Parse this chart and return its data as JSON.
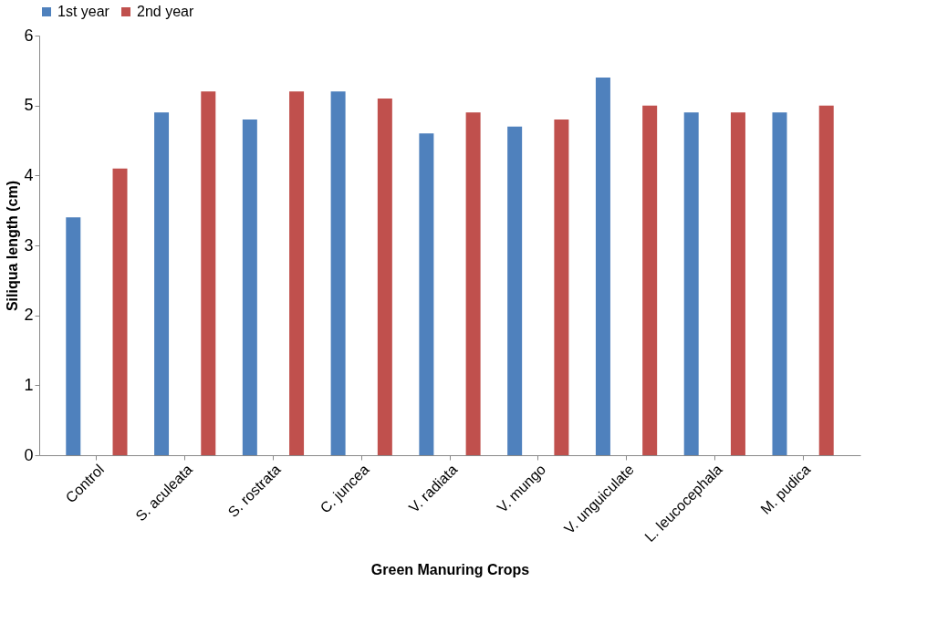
{
  "chart_data": {
    "type": "bar",
    "xlabel": "Green Manuring Crops",
    "ylabel": "Siliqua length (cm)",
    "categories": [
      "Control",
      "S. aculeata",
      "S. rostrata",
      "C. juncea",
      "V. radiata",
      "V. mungo",
      "V. unguiculate",
      "L. leucocephala",
      "M. pudica"
    ],
    "series": [
      {
        "name": "1st year",
        "color": "#4f81bd",
        "values": [
          3.4,
          4.9,
          4.8,
          5.2,
          4.6,
          4.7,
          5.4,
          4.9,
          4.9
        ]
      },
      {
        "name": "2nd year",
        "color": "#c0504d",
        "values": [
          4.1,
          5.2,
          5.2,
          5.1,
          4.9,
          4.8,
          5.0,
          4.9,
          5.0
        ]
      }
    ],
    "ylim": [
      0,
      6
    ],
    "yticks": [
      0,
      1,
      2,
      3,
      4,
      5,
      6
    ],
    "grid": false,
    "legend": "top"
  }
}
